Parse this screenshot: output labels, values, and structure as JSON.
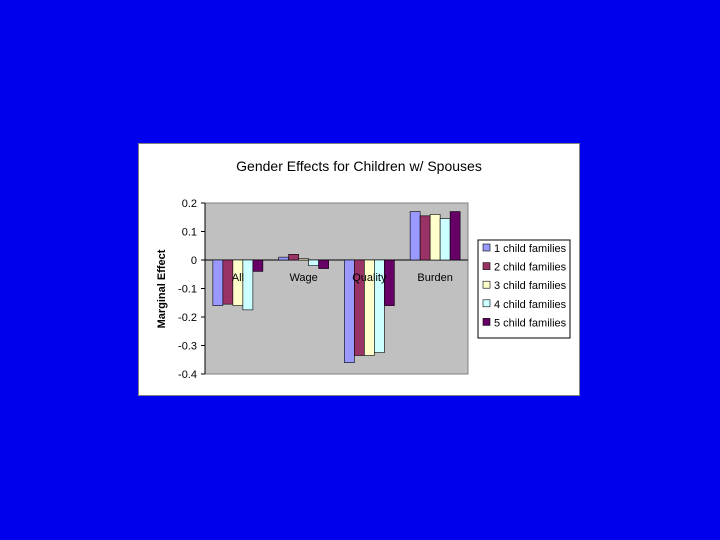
{
  "chart_data": {
    "type": "bar",
    "title": "Gender Effects for Children w/ Spouses",
    "xlabel": "",
    "ylabel": "Marginal Effect",
    "ylim": [
      -0.4,
      0.2
    ],
    "yticks": [
      "0.2",
      "0.1",
      "0",
      "-0.1",
      "-0.2",
      "-0.3",
      "-0.4"
    ],
    "grid": false,
    "legend_position": "right",
    "categories": [
      "All",
      "Wage",
      "Quality",
      "Burden"
    ],
    "series": [
      {
        "name": "1 child families",
        "color": "#9999ff",
        "values": [
          -0.16,
          0.01,
          -0.36,
          0.17
        ]
      },
      {
        "name": "2 child families",
        "color": "#993366",
        "values": [
          -0.155,
          0.02,
          -0.335,
          0.155
        ]
      },
      {
        "name": "3 child families",
        "color": "#ffffcc",
        "values": [
          -0.16,
          0.005,
          -0.335,
          0.16
        ]
      },
      {
        "name": "4 child families",
        "color": "#ccffff",
        "values": [
          -0.175,
          -0.02,
          -0.325,
          0.145
        ]
      },
      {
        "name": "5 child families",
        "color": "#660066",
        "values": [
          -0.04,
          -0.03,
          -0.16,
          0.17
        ]
      }
    ]
  }
}
